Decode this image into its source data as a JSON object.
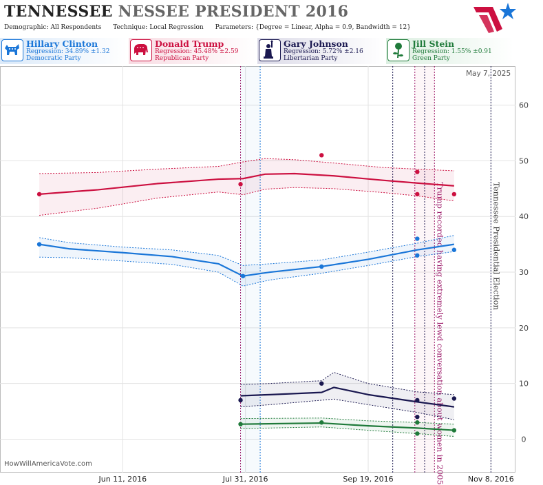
{
  "title_dark": "TENNESSEE",
  "title_light": "NESSEE PRESIDENT 2016",
  "params": {
    "demographic_label": "Demographic:",
    "demographic_value": "All Respondents",
    "technique_label": "Technique:",
    "technique_value": "Local Regression",
    "parameters_label": "Parameters:",
    "parameters_value": "{Degree = Linear, Alpha = 0.9, Bandwidth = 12}"
  },
  "candidates": [
    {
      "name": "Hillary Clinton",
      "regression": "Regression: 34.89% ±1.32",
      "party": "Democratic Party",
      "color": "#1a76d8",
      "icon": "donkey-icon"
    },
    {
      "name": "Donald Trump",
      "regression": "Regression: 45.48% ±2.59",
      "party": "Republican Party",
      "color": "#cc1040",
      "icon": "elephant-icon"
    },
    {
      "name": "Gary Johnson",
      "regression": "Regression: 5.72% ±2.16",
      "party": "Libertarian Party",
      "color": "#1a1850",
      "icon": "statue-of-liberty-icon"
    },
    {
      "name": "Jill Stein",
      "regression": "Regression: 1.55% ±0.91",
      "party": "Green Party",
      "color": "#1f7a3a",
      "icon": "rose-icon"
    }
  ],
  "source": "HowWillAmericaVote.com",
  "datestamp": "May 7, 2025",
  "chart_data": {
    "type": "line",
    "x_ticks": [
      "Jun 11, 2016",
      "Jul 31, 2016",
      "Sep 19, 2016",
      "Nov 8, 2016"
    ],
    "ylim": [
      -6,
      67
    ],
    "y_ticks": [
      0,
      10,
      20,
      30,
      40,
      50,
      60
    ],
    "grid": true,
    "series": [
      {
        "name": "Donald Trump",
        "color": "#cc1040",
        "line": [
          [
            "2016-05-08",
            44.0
          ],
          [
            "2016-06-01",
            44.8
          ],
          [
            "2016-06-25",
            45.9
          ],
          [
            "2016-07-20",
            46.7
          ],
          [
            "2016-07-30",
            46.8
          ],
          [
            "2016-08-08",
            47.6
          ],
          [
            "2016-08-20",
            47.7
          ],
          [
            "2016-09-05",
            47.3
          ],
          [
            "2016-09-25",
            46.5
          ],
          [
            "2016-10-09",
            46.0
          ],
          [
            "2016-10-24",
            45.5
          ]
        ],
        "upper": [
          [
            "2016-05-08",
            47.7
          ],
          [
            "2016-06-01",
            47.9
          ],
          [
            "2016-06-25",
            48.5
          ],
          [
            "2016-07-20",
            49.0
          ],
          [
            "2016-07-30",
            49.8
          ],
          [
            "2016-08-08",
            50.4
          ],
          [
            "2016-08-20",
            50.2
          ],
          [
            "2016-09-05",
            49.6
          ],
          [
            "2016-09-25",
            48.8
          ],
          [
            "2016-10-09",
            48.5
          ],
          [
            "2016-10-24",
            48.2
          ]
        ],
        "lower": [
          [
            "2016-05-08",
            40.2
          ],
          [
            "2016-06-01",
            41.5
          ],
          [
            "2016-06-25",
            43.3
          ],
          [
            "2016-07-20",
            44.4
          ],
          [
            "2016-07-30",
            43.9
          ],
          [
            "2016-08-08",
            44.9
          ],
          [
            "2016-08-20",
            45.2
          ],
          [
            "2016-09-05",
            45.0
          ],
          [
            "2016-09-25",
            44.3
          ],
          [
            "2016-10-09",
            43.7
          ],
          [
            "2016-10-24",
            42.8
          ]
        ],
        "points": [
          [
            "2016-05-08",
            44.0
          ],
          [
            "2016-07-29",
            45.8
          ],
          [
            "2016-08-31",
            51.0
          ],
          [
            "2016-10-09",
            48.0
          ],
          [
            "2016-10-09",
            44.0
          ],
          [
            "2016-10-24",
            44.0
          ]
        ]
      },
      {
        "name": "Hillary Clinton",
        "color": "#1a76d8",
        "line": [
          [
            "2016-05-08",
            35.0
          ],
          [
            "2016-05-20",
            34.2
          ],
          [
            "2016-06-11",
            33.5
          ],
          [
            "2016-07-01",
            32.8
          ],
          [
            "2016-07-20",
            31.5
          ],
          [
            "2016-07-30",
            29.3
          ],
          [
            "2016-08-10",
            30.0
          ],
          [
            "2016-08-31",
            31.0
          ],
          [
            "2016-09-19",
            32.3
          ],
          [
            "2016-10-09",
            34.0
          ],
          [
            "2016-10-24",
            35.0
          ]
        ],
        "upper": [
          [
            "2016-05-08",
            36.2
          ],
          [
            "2016-05-20",
            35.3
          ],
          [
            "2016-06-11",
            34.5
          ],
          [
            "2016-07-01",
            34.0
          ],
          [
            "2016-07-20",
            33.0
          ],
          [
            "2016-07-30",
            31.2
          ],
          [
            "2016-08-10",
            31.5
          ],
          [
            "2016-08-31",
            32.2
          ],
          [
            "2016-09-19",
            33.6
          ],
          [
            "2016-10-09",
            35.2
          ],
          [
            "2016-10-24",
            36.6
          ]
        ],
        "lower": [
          [
            "2016-05-08",
            32.7
          ],
          [
            "2016-05-20",
            32.6
          ],
          [
            "2016-06-11",
            32.0
          ],
          [
            "2016-07-01",
            31.4
          ],
          [
            "2016-07-20",
            30.0
          ],
          [
            "2016-07-30",
            27.5
          ],
          [
            "2016-08-10",
            28.6
          ],
          [
            "2016-08-31",
            29.8
          ],
          [
            "2016-09-19",
            31.2
          ],
          [
            "2016-10-09",
            32.8
          ],
          [
            "2016-10-24",
            33.7
          ]
        ],
        "points": [
          [
            "2016-05-08",
            35.0
          ],
          [
            "2016-07-30",
            29.3
          ],
          [
            "2016-08-31",
            31.0
          ],
          [
            "2016-10-09",
            36.0
          ],
          [
            "2016-10-09",
            33.0
          ],
          [
            "2016-10-24",
            34.0
          ]
        ]
      },
      {
        "name": "Gary Johnson",
        "color": "#1a1850",
        "line": [
          [
            "2016-07-29",
            7.8
          ],
          [
            "2016-08-10",
            8.0
          ],
          [
            "2016-08-31",
            8.4
          ],
          [
            "2016-09-05",
            9.3
          ],
          [
            "2016-09-19",
            8.0
          ],
          [
            "2016-10-09",
            6.7
          ],
          [
            "2016-10-24",
            5.8
          ]
        ],
        "upper": [
          [
            "2016-07-29",
            9.8
          ],
          [
            "2016-08-10",
            10.0
          ],
          [
            "2016-08-31",
            10.5
          ],
          [
            "2016-09-05",
            12.0
          ],
          [
            "2016-09-19",
            10.0
          ],
          [
            "2016-10-09",
            8.5
          ],
          [
            "2016-10-24",
            8.0
          ]
        ],
        "lower": [
          [
            "2016-07-29",
            5.8
          ],
          [
            "2016-08-10",
            6.2
          ],
          [
            "2016-08-31",
            7.0
          ],
          [
            "2016-09-05",
            7.2
          ],
          [
            "2016-09-19",
            6.2
          ],
          [
            "2016-10-09",
            4.8
          ],
          [
            "2016-10-24",
            3.5
          ]
        ],
        "points": [
          [
            "2016-07-29",
            7.0
          ],
          [
            "2016-08-31",
            10.0
          ],
          [
            "2016-10-09",
            7.0
          ],
          [
            "2016-10-09",
            4.0
          ],
          [
            "2016-10-24",
            7.3
          ]
        ]
      },
      {
        "name": "Jill Stein",
        "color": "#1f7a3a",
        "line": [
          [
            "2016-07-29",
            2.7
          ],
          [
            "2016-08-31",
            2.9
          ],
          [
            "2016-09-19",
            2.4
          ],
          [
            "2016-10-09",
            2.0
          ],
          [
            "2016-10-24",
            1.6
          ]
        ],
        "upper": [
          [
            "2016-07-29",
            3.7
          ],
          [
            "2016-08-31",
            3.8
          ],
          [
            "2016-09-19",
            3.3
          ],
          [
            "2016-10-09",
            3.0
          ],
          [
            "2016-10-24",
            2.7
          ]
        ],
        "lower": [
          [
            "2016-07-29",
            1.9
          ],
          [
            "2016-08-31",
            2.2
          ],
          [
            "2016-09-19",
            1.6
          ],
          [
            "2016-10-09",
            1.0
          ],
          [
            "2016-10-24",
            0.5
          ]
        ],
        "points": [
          [
            "2016-07-29",
            2.7
          ],
          [
            "2016-08-31",
            3.0
          ],
          [
            "2016-10-09",
            3.0
          ],
          [
            "2016-10-09",
            1.0
          ],
          [
            "2016-10-24",
            1.6
          ]
        ]
      }
    ],
    "events": [
      {
        "date": "2016-07-29",
        "color": "#9c1a6a",
        "label": ""
      },
      {
        "date": "2016-08-06",
        "color": "#1a76d8",
        "label": ""
      },
      {
        "date": "2016-09-29",
        "color": "#1a1850",
        "label": ""
      },
      {
        "date": "2016-10-08",
        "color": "#9c1a6a",
        "label": ""
      },
      {
        "date": "2016-10-12",
        "color": "#1a1850",
        "label": ""
      },
      {
        "date": "2016-10-16",
        "color": "#9c1a6a",
        "label": "Trump recorded having extremely lewd conversation about women in 2005."
      },
      {
        "date": "2016-11-08",
        "color": "#1a1850",
        "label": "Tennessee Presidential Election"
      }
    ]
  }
}
